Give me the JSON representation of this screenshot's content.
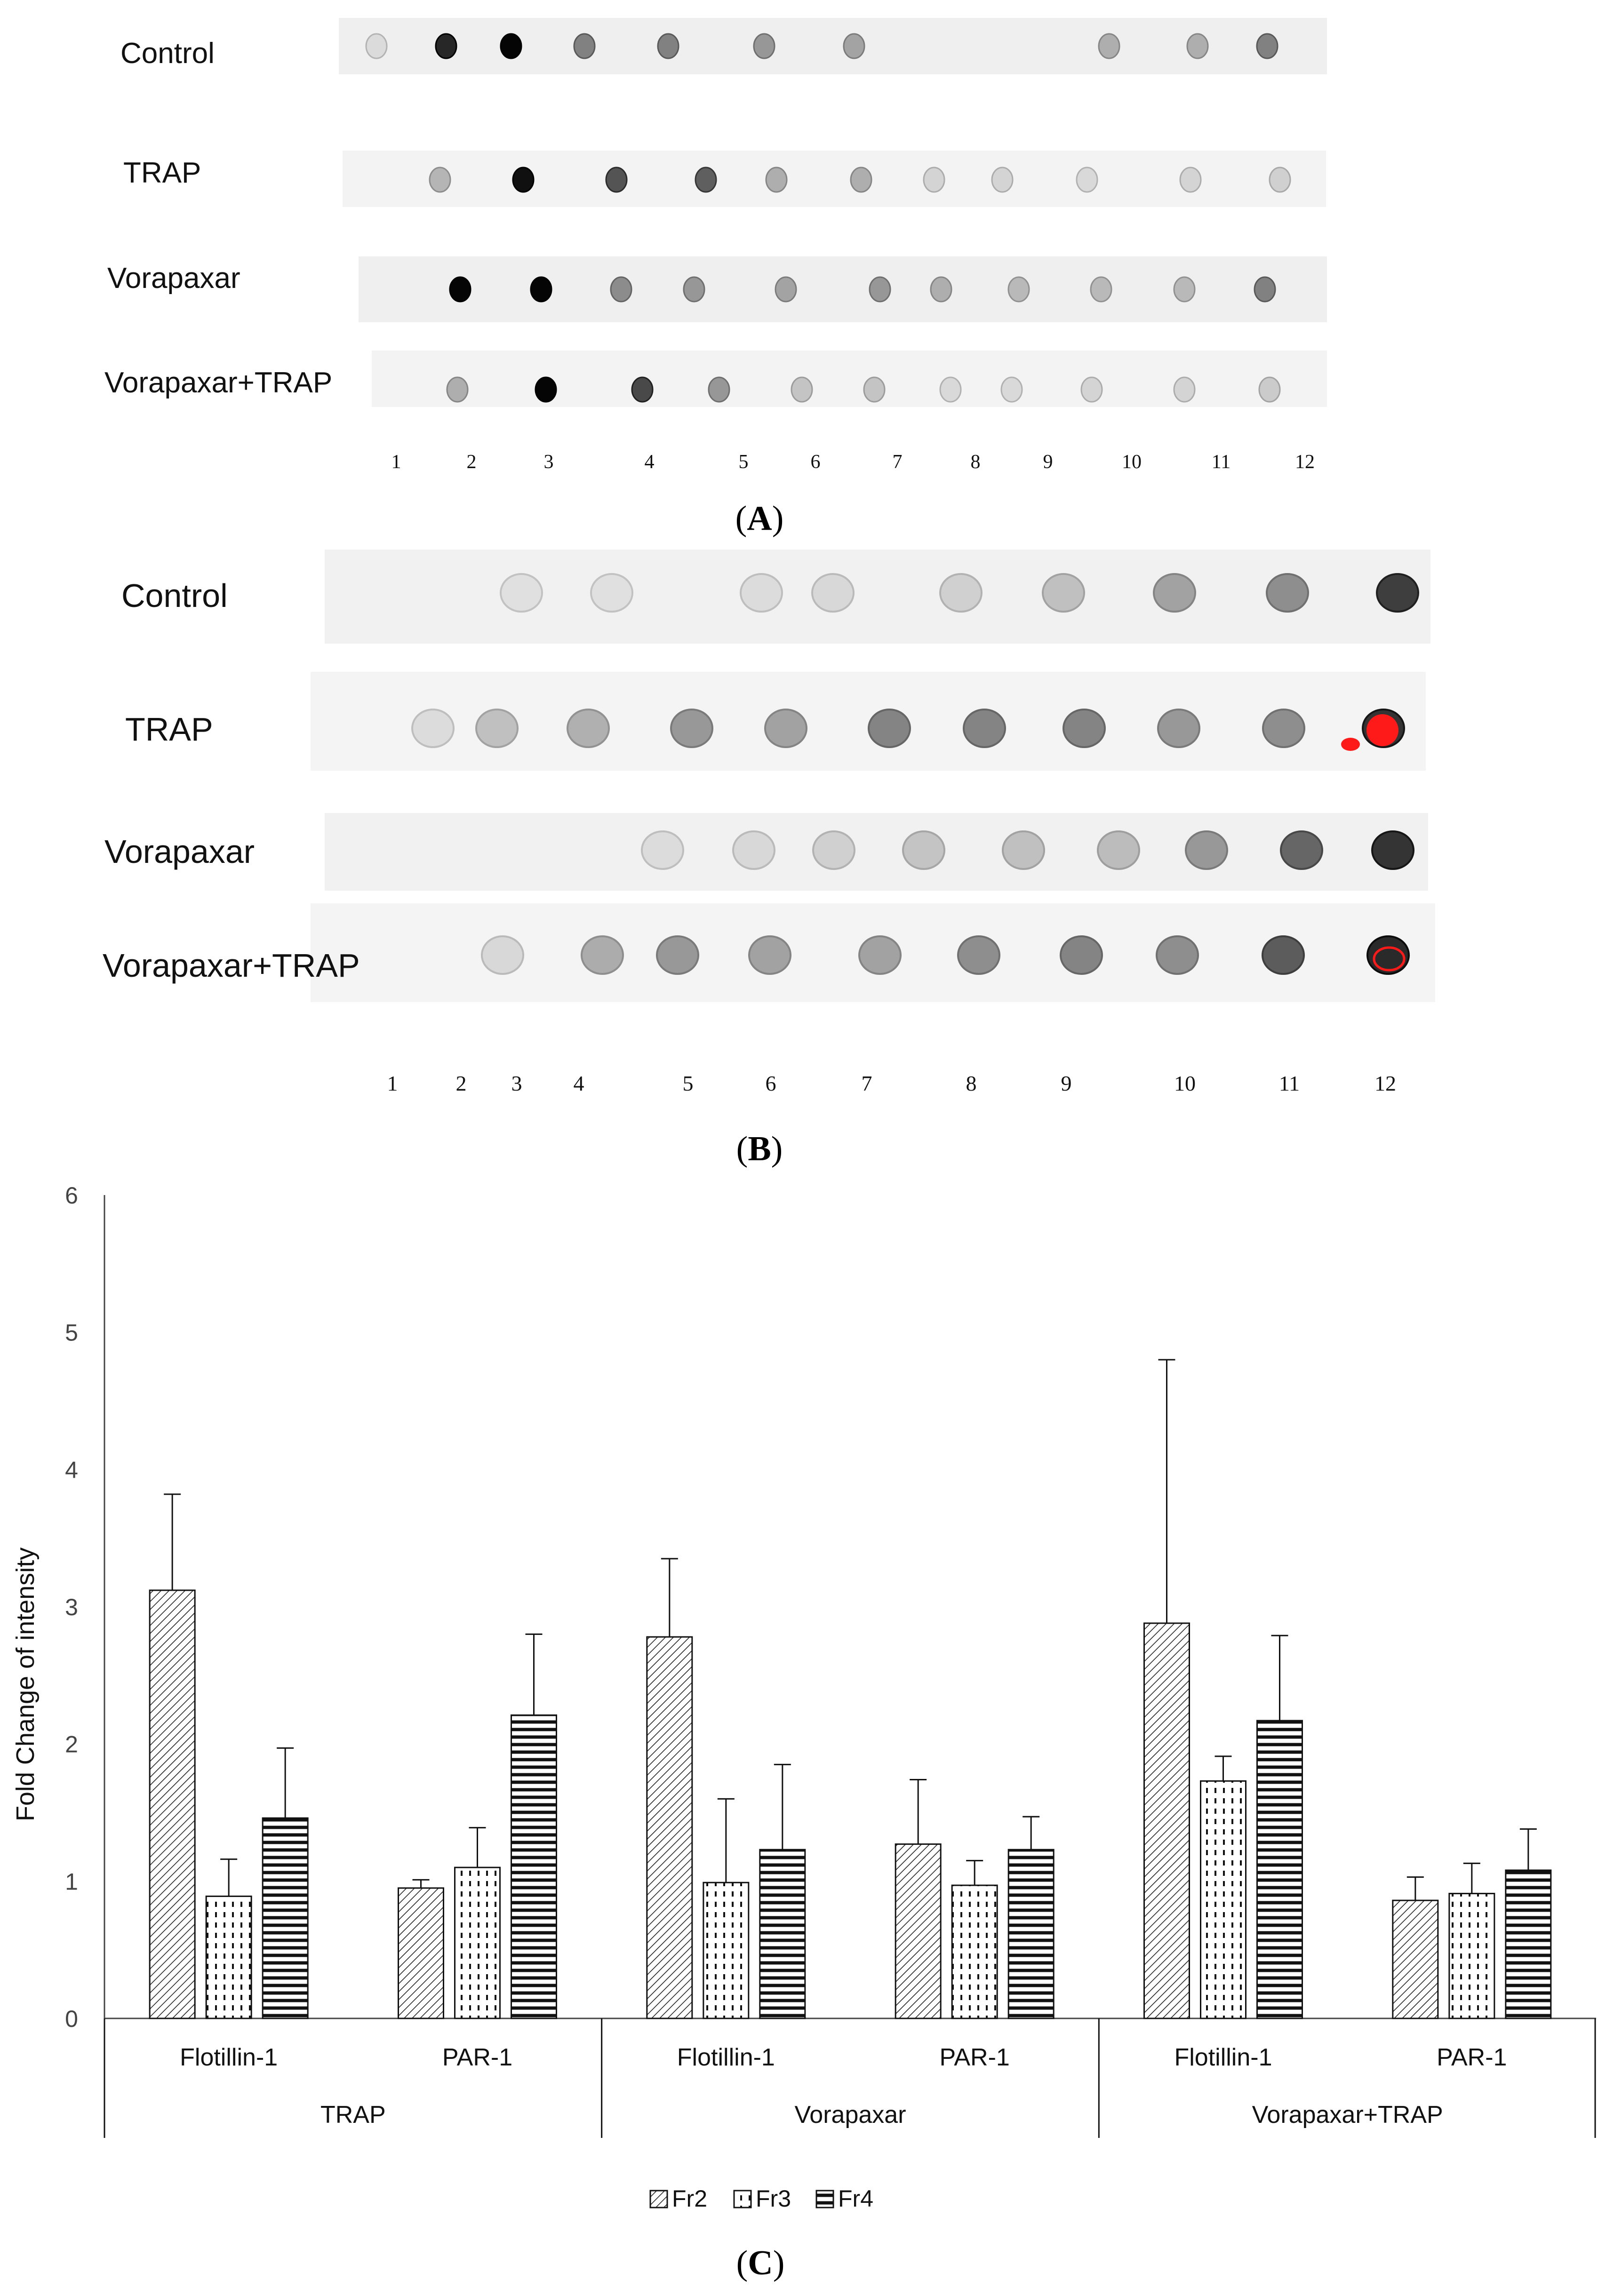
{
  "panel_a": {
    "rows": [
      "Control",
      "TRAP",
      "Vorapaxar",
      "Vorapaxar+TRAP"
    ],
    "lanes": [
      "1",
      "2",
      "3",
      "4",
      "5",
      "6",
      "7",
      "8",
      "9",
      "10",
      "11",
      "12"
    ],
    "caption_letter": "A"
  },
  "panel_b": {
    "rows": [
      "Control",
      "TRAP",
      "Vorapaxar",
      "Vorapaxar+TRAP"
    ],
    "lanes": [
      "1",
      "2",
      "3",
      "4",
      "5",
      "6",
      "7",
      "8",
      "9",
      "10",
      "11",
      "12"
    ],
    "caption_letter": "B"
  },
  "panel_c": {
    "caption_letter": "C"
  },
  "chart_data": {
    "type": "bar",
    "ylabel": "Fold Change of intensity",
    "xlabel": "",
    "ylim": [
      0,
      6
    ],
    "yticks": [
      "0",
      "1",
      "2",
      "3",
      "4",
      "5",
      "6"
    ],
    "groups": [
      "TRAP",
      "Vorapaxar",
      "Vorapaxar+TRAP"
    ],
    "categories": [
      "Flotillin-1",
      "PAR-1",
      "Flotillin-1",
      "PAR-1",
      "Flotillin-1",
      "PAR-1"
    ],
    "series": [
      {
        "name": "Fr2",
        "values": [
          3.12,
          0.95,
          2.78,
          1.27,
          2.88,
          0.86
        ],
        "errors": [
          0.7,
          0.06,
          0.57,
          0.47,
          1.92,
          0.17
        ]
      },
      {
        "name": "Fr3",
        "values": [
          0.89,
          1.1,
          0.99,
          0.97,
          1.73,
          0.91
        ],
        "errors": [
          0.27,
          0.29,
          0.61,
          0.18,
          0.18,
          0.22
        ]
      },
      {
        "name": "Fr4",
        "values": [
          1.46,
          2.21,
          1.23,
          1.23,
          2.17,
          1.08
        ],
        "errors": [
          0.51,
          0.59,
          0.62,
          0.24,
          0.62,
          0.3
        ]
      }
    ],
    "legend_position": "bottom",
    "grid": false
  }
}
